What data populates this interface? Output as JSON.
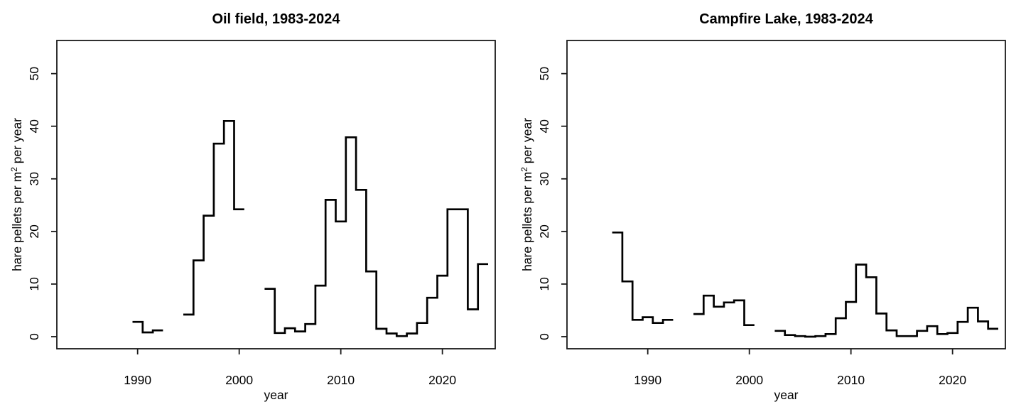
{
  "figure": {
    "background": "#ffffff",
    "line_color": "#000000",
    "axis_color": "#1a1a1a"
  },
  "chart_data": [
    {
      "type": "step",
      "title": "Oil field, 1983-2024",
      "xlabel": "year",
      "ylabel": "hare pellets per m² per year",
      "ylabel_parts": {
        "pre": "hare pellets per m",
        "sup": "2",
        "post": " per year"
      },
      "x_ticks": [
        1990,
        2000,
        2010,
        2020
      ],
      "y_ticks": [
        0,
        10,
        20,
        30,
        40,
        50
      ],
      "xlim": [
        1982.05,
        2025.2
      ],
      "ylim": [
        -2.3,
        56.3
      ],
      "years": [
        1983,
        1984,
        1985,
        1986,
        1987,
        1988,
        1989,
        1990,
        1991,
        1992,
        1993,
        1994,
        1995,
        1996,
        1997,
        1998,
        1999,
        2000,
        2001,
        2002,
        2003,
        2004,
        2005,
        2006,
        2007,
        2008,
        2009,
        2010,
        2011,
        2012,
        2013,
        2014,
        2015,
        2016,
        2017,
        2018,
        2019,
        2020,
        2021,
        2022,
        2023,
        2024
      ],
      "values": [
        null,
        null,
        null,
        null,
        null,
        null,
        null,
        2.8,
        0.8,
        1.2,
        null,
        null,
        4.2,
        14.5,
        23,
        36.7,
        41,
        24.2,
        null,
        null,
        9.1,
        0.7,
        1.6,
        1.0,
        2.4,
        9.7,
        26,
        21.9,
        37.9,
        27.9,
        12.4,
        1.5,
        0.6,
        0.1,
        0.6,
        2.6,
        7.4,
        11.6,
        24.2,
        24.2,
        5.2,
        13.8
      ]
    },
    {
      "type": "step",
      "title": "Campfire Lake, 1983-2024",
      "xlabel": "year",
      "ylabel": "hare pellets per m² per year",
      "ylabel_parts": {
        "pre": "hare pellets per m",
        "sup": "2",
        "post": " per year"
      },
      "x_ticks": [
        1990,
        2000,
        2010,
        2020
      ],
      "y_ticks": [
        0,
        10,
        20,
        30,
        40,
        50
      ],
      "xlim": [
        1982.05,
        2025.2
      ],
      "ylim": [
        -2.3,
        56.3
      ],
      "years": [
        1983,
        1984,
        1985,
        1986,
        1987,
        1988,
        1989,
        1990,
        1991,
        1992,
        1993,
        1994,
        1995,
        1996,
        1997,
        1998,
        1999,
        2000,
        2001,
        2002,
        2003,
        2004,
        2005,
        2006,
        2007,
        2008,
        2009,
        2010,
        2011,
        2012,
        2013,
        2014,
        2015,
        2016,
        2017,
        2018,
        2019,
        2020,
        2021,
        2022,
        2023,
        2024
      ],
      "values": [
        null,
        null,
        null,
        null,
        19.8,
        10.5,
        3.2,
        3.7,
        2.6,
        3.2,
        null,
        null,
        4.3,
        7.8,
        5.7,
        6.5,
        6.9,
        2.2,
        null,
        null,
        1.1,
        0.3,
        0.1,
        0.0,
        0.1,
        0.5,
        3.5,
        6.6,
        13.7,
        11.3,
        4.4,
        1.2,
        0.1,
        0.1,
        1.1,
        2.0,
        0.5,
        0.7,
        2.8,
        5.5,
        2.9,
        1.5
      ]
    }
  ]
}
